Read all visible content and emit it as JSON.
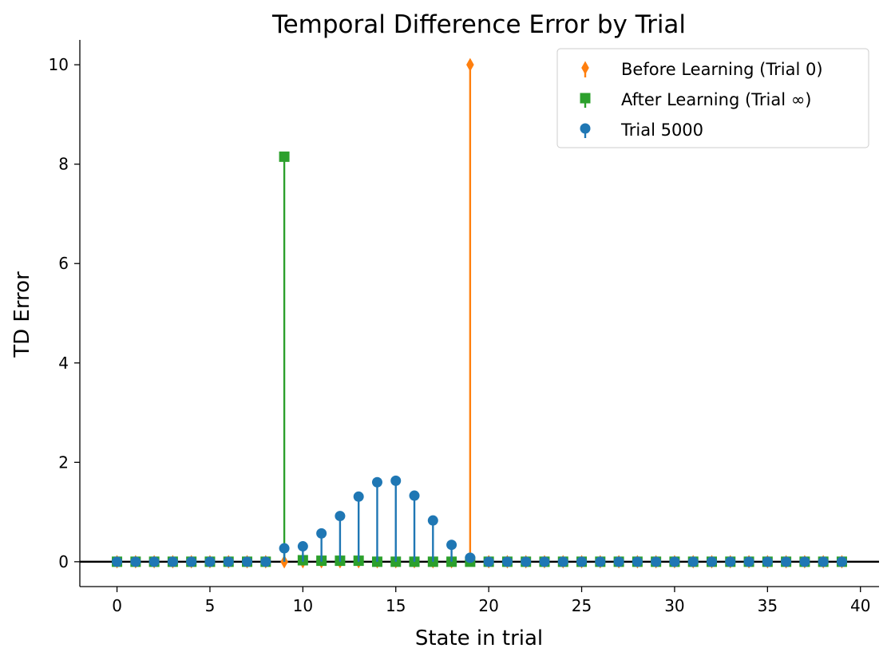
{
  "chart_data": {
    "type": "stem",
    "title": "Temporal Difference Error by Trial",
    "xlabel": "State in trial",
    "ylabel": "TD Error",
    "xlim": [
      -2,
      41
    ],
    "ylim": [
      -0.5,
      10.5
    ],
    "xticks": [
      0,
      5,
      10,
      15,
      20,
      25,
      30,
      35,
      40
    ],
    "yticks": [
      0,
      2,
      4,
      6,
      8,
      10
    ],
    "baseline": 0,
    "legend_position": "top-right",
    "x": [
      0,
      1,
      2,
      3,
      4,
      5,
      6,
      7,
      8,
      9,
      10,
      11,
      12,
      13,
      14,
      15,
      16,
      17,
      18,
      19,
      20,
      21,
      22,
      23,
      24,
      25,
      26,
      27,
      28,
      29,
      30,
      31,
      32,
      33,
      34,
      35,
      36,
      37,
      38,
      39
    ],
    "series": [
      {
        "name": "Before Learning (Trial 0)",
        "color": "#ff7f0e",
        "marker": "thin_diamond",
        "values": [
          0,
          0,
          0,
          0,
          0,
          0,
          0,
          0,
          0,
          0,
          0,
          0,
          0,
          0,
          0,
          0,
          0,
          0,
          0,
          10,
          0,
          0,
          0,
          0,
          0,
          0,
          0,
          0,
          0,
          0,
          0,
          0,
          0,
          0,
          0,
          0,
          0,
          0,
          0,
          0
        ]
      },
      {
        "name": "After Learning (Trial ∞)",
        "color": "#2ca02c",
        "marker": "square",
        "values": [
          0,
          0,
          0,
          0,
          0,
          0,
          0,
          0,
          0,
          8.15,
          0.03,
          0.02,
          0.02,
          0.02,
          0,
          0,
          0,
          0,
          0,
          0,
          0,
          0,
          0,
          0,
          0,
          0,
          0,
          0,
          0,
          0,
          0,
          0,
          0,
          0,
          0,
          0,
          0,
          0,
          0,
          0
        ]
      },
      {
        "name": "Trial 5000",
        "color": "#1f77b4",
        "marker": "circle",
        "values": [
          0,
          0,
          0,
          0,
          0,
          0,
          0,
          0,
          0,
          0.27,
          0.31,
          0.57,
          0.92,
          1.31,
          1.6,
          1.63,
          1.33,
          0.83,
          0.34,
          0.08,
          0,
          0,
          0,
          0,
          0,
          0,
          0,
          0,
          0,
          0,
          0,
          0,
          0,
          0,
          0,
          0,
          0,
          0,
          0,
          0
        ]
      }
    ]
  }
}
